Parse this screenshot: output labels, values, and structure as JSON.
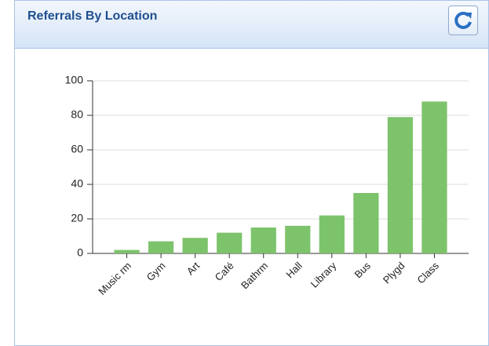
{
  "chart_data": {
    "type": "bar",
    "title": "Referrals By Location",
    "categories": [
      "Music rm",
      "Gym",
      "Art",
      "Café",
      "Bathrm",
      "Hall",
      "Library",
      "Bus",
      "Plygd",
      "Class"
    ],
    "values": [
      2,
      7,
      9,
      12,
      15,
      16,
      22,
      35,
      79,
      88
    ],
    "color": "#7dc36b",
    "ylim": [
      0,
      100
    ],
    "yticks": [
      0,
      20,
      40,
      60,
      80,
      100
    ],
    "grid": true
  }
}
